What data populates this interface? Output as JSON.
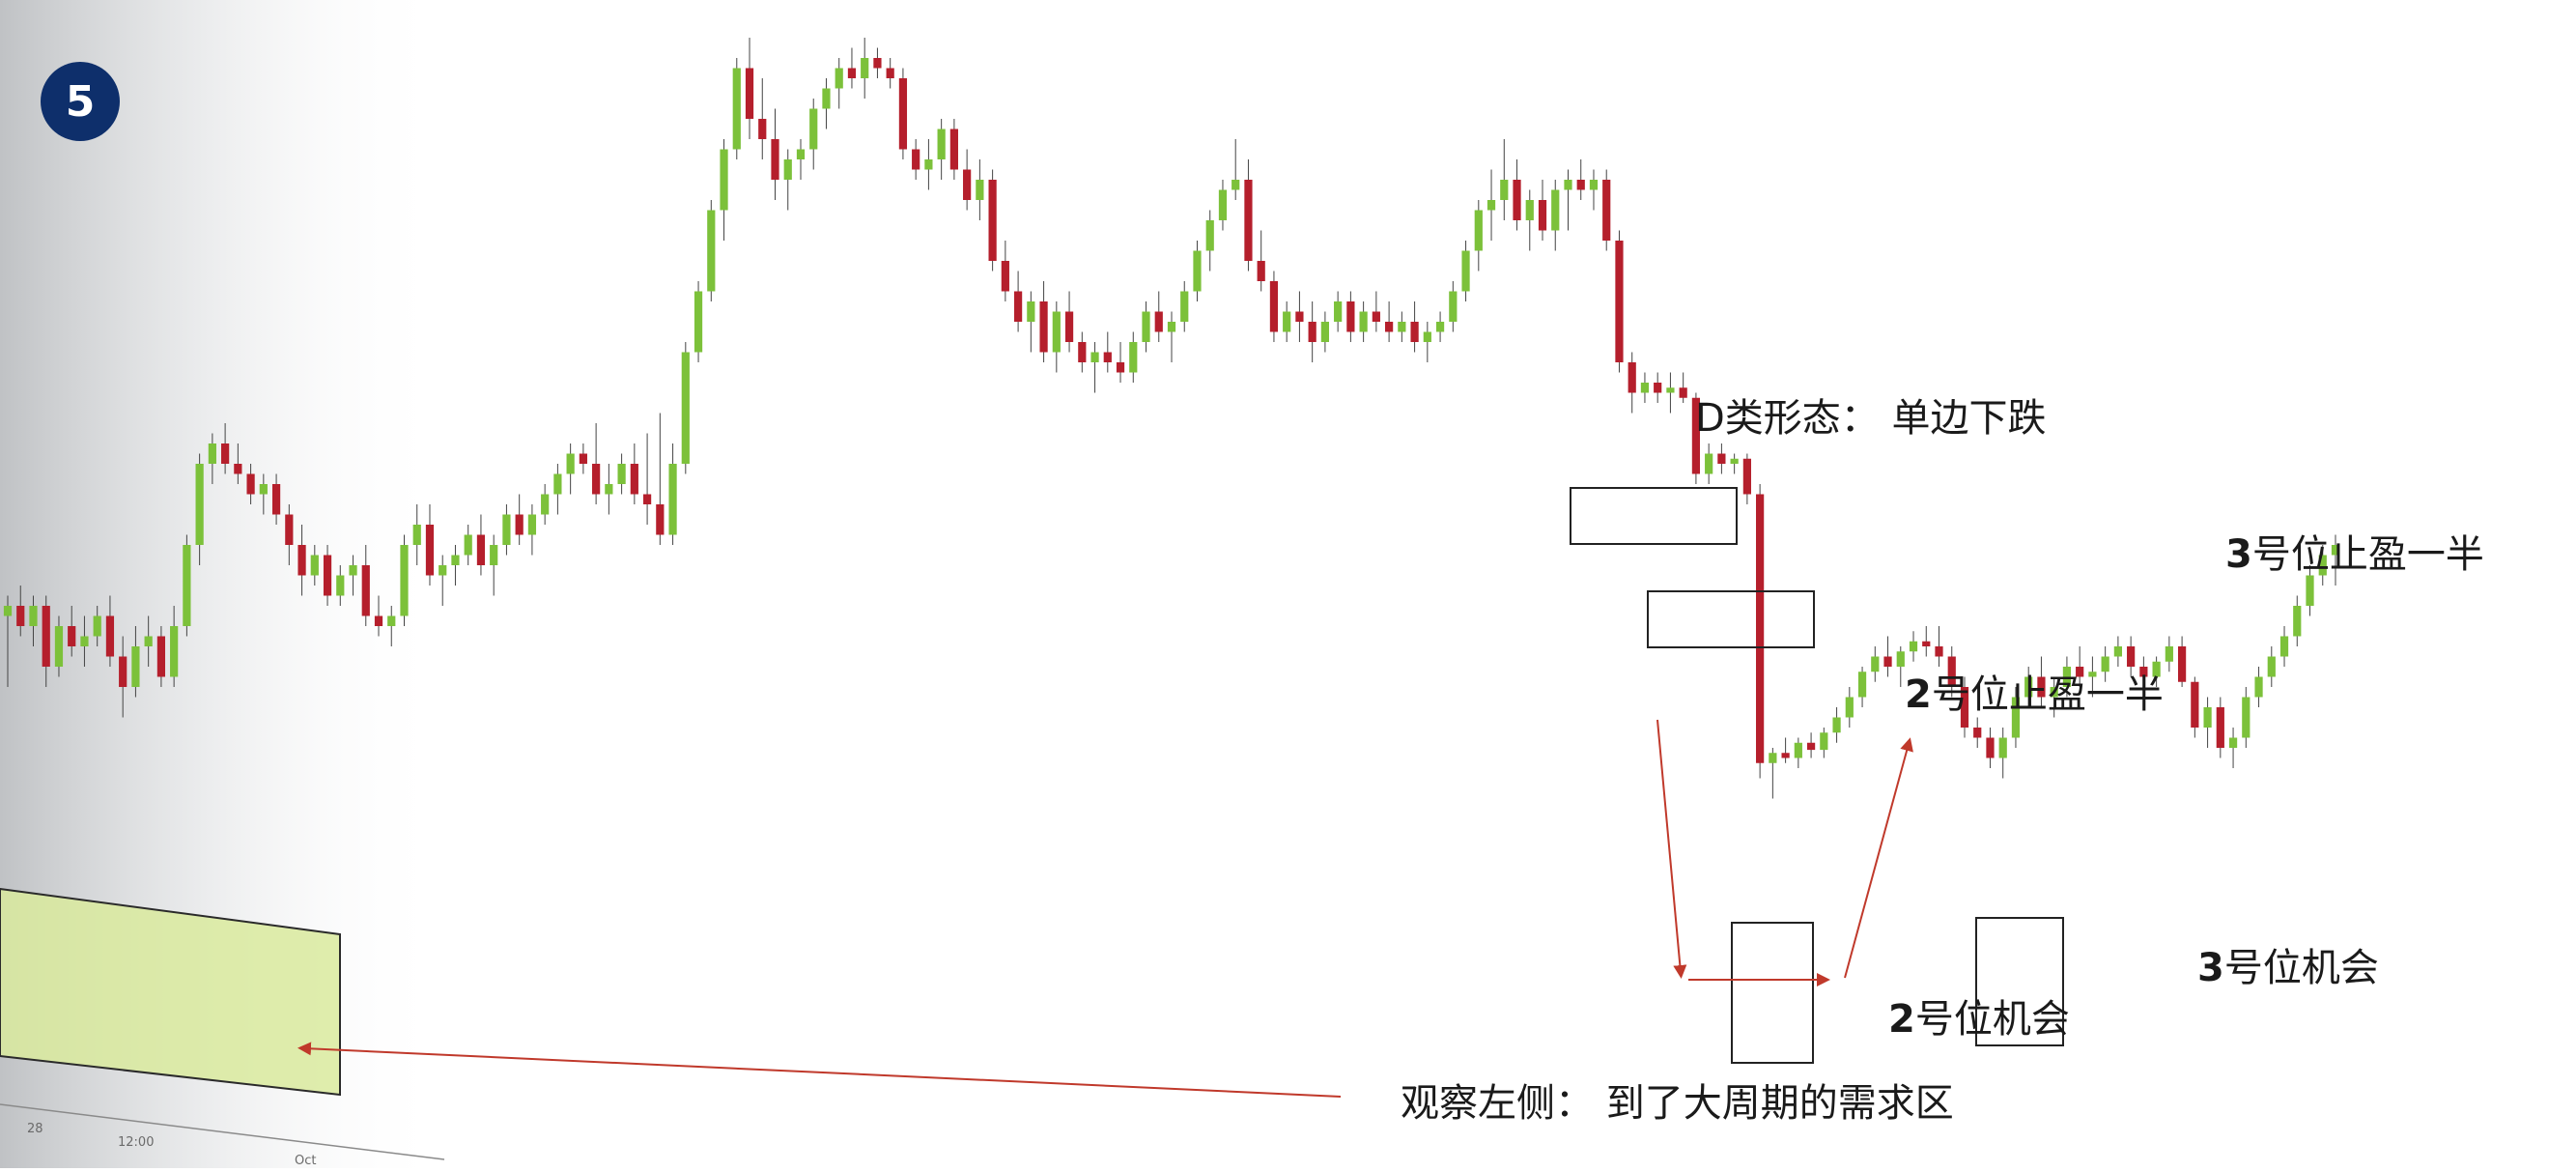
{
  "badge": "5",
  "annotations": {
    "pattern_label": "D类形态：  单边下跌",
    "observe_left": "观察左侧：  到了大周期的需求区",
    "tp2_num": "2",
    "tp2_text": "号位止盈一半",
    "opp2_num": "2",
    "opp2_text": "号位机会",
    "tp3_num": "3",
    "tp3_text": "号位止盈一半",
    "opp3_num": "3",
    "opp3_text": "号位机会"
  },
  "axis_fragments": {
    "t1": "28",
    "t2": "12:00",
    "t3": "Oct"
  },
  "colors": {
    "up": "#7cc13a",
    "down": "#b51f2c",
    "zone_fill": "#d9ea9e",
    "zone_stroke": "#2a2a2a",
    "arrow": "#c0392b",
    "badge": "#0e2f6b"
  },
  "chart_data": {
    "type": "candlestick",
    "title": "",
    "xlabel": "",
    "ylabel": "",
    "ylim": [
      0,
      1000
    ],
    "candles": [
      [
        450,
        470,
        380,
        460
      ],
      [
        460,
        480,
        430,
        440
      ],
      [
        440,
        470,
        420,
        460
      ],
      [
        460,
        470,
        380,
        400
      ],
      [
        400,
        450,
        390,
        440
      ],
      [
        440,
        460,
        410,
        420
      ],
      [
        420,
        450,
        400,
        430
      ],
      [
        430,
        460,
        420,
        450
      ],
      [
        450,
        470,
        400,
        410
      ],
      [
        410,
        430,
        350,
        380
      ],
      [
        380,
        440,
        370,
        420
      ],
      [
        420,
        450,
        400,
        430
      ],
      [
        430,
        440,
        380,
        390
      ],
      [
        390,
        460,
        380,
        440
      ],
      [
        440,
        530,
        430,
        520
      ],
      [
        520,
        610,
        500,
        600
      ],
      [
        600,
        630,
        580,
        620
      ],
      [
        620,
        640,
        590,
        600
      ],
      [
        600,
        620,
        580,
        590
      ],
      [
        590,
        600,
        560,
        570
      ],
      [
        570,
        590,
        550,
        580
      ],
      [
        580,
        590,
        540,
        550
      ],
      [
        550,
        560,
        500,
        520
      ],
      [
        520,
        540,
        470,
        490
      ],
      [
        490,
        520,
        480,
        510
      ],
      [
        510,
        520,
        460,
        470
      ],
      [
        470,
        500,
        460,
        490
      ],
      [
        490,
        510,
        470,
        500
      ],
      [
        500,
        520,
        440,
        450
      ],
      [
        450,
        470,
        430,
        440
      ],
      [
        440,
        460,
        420,
        450
      ],
      [
        450,
        530,
        440,
        520
      ],
      [
        520,
        560,
        500,
        540
      ],
      [
        540,
        560,
        480,
        490
      ],
      [
        490,
        510,
        460,
        500
      ],
      [
        500,
        520,
        480,
        510
      ],
      [
        510,
        540,
        500,
        530
      ],
      [
        530,
        550,
        490,
        500
      ],
      [
        500,
        530,
        470,
        520
      ],
      [
        520,
        560,
        510,
        550
      ],
      [
        550,
        570,
        520,
        530
      ],
      [
        530,
        560,
        510,
        550
      ],
      [
        550,
        580,
        540,
        570
      ],
      [
        570,
        600,
        550,
        590
      ],
      [
        590,
        620,
        570,
        610
      ],
      [
        610,
        620,
        590,
        600
      ],
      [
        600,
        640,
        560,
        570
      ],
      [
        570,
        600,
        550,
        580
      ],
      [
        580,
        610,
        570,
        600
      ],
      [
        600,
        620,
        560,
        570
      ],
      [
        570,
        630,
        540,
        560
      ],
      [
        560,
        650,
        520,
        530
      ],
      [
        530,
        620,
        520,
        600
      ],
      [
        600,
        720,
        590,
        710
      ],
      [
        710,
        780,
        700,
        770
      ],
      [
        770,
        860,
        760,
        850
      ],
      [
        850,
        920,
        820,
        910
      ],
      [
        910,
        1000,
        900,
        990
      ],
      [
        990,
        1020,
        920,
        940
      ],
      [
        940,
        980,
        900,
        920
      ],
      [
        920,
        950,
        860,
        880
      ],
      [
        880,
        910,
        850,
        900
      ],
      [
        900,
        920,
        880,
        910
      ],
      [
        910,
        960,
        890,
        950
      ],
      [
        950,
        980,
        930,
        970
      ],
      [
        970,
        1000,
        950,
        990
      ],
      [
        990,
        1010,
        970,
        980
      ],
      [
        980,
        1020,
        960,
        1000
      ],
      [
        1000,
        1010,
        980,
        990
      ],
      [
        990,
        1000,
        970,
        980
      ],
      [
        980,
        990,
        900,
        910
      ],
      [
        910,
        920,
        880,
        890
      ],
      [
        890,
        920,
        870,
        900
      ],
      [
        900,
        940,
        880,
        930
      ],
      [
        930,
        940,
        880,
        890
      ],
      [
        890,
        910,
        850,
        860
      ],
      [
        860,
        900,
        840,
        880
      ],
      [
        880,
        890,
        790,
        800
      ],
      [
        800,
        820,
        760,
        770
      ],
      [
        770,
        790,
        730,
        740
      ],
      [
        740,
        770,
        710,
        760
      ],
      [
        760,
        780,
        700,
        710
      ],
      [
        710,
        760,
        690,
        750
      ],
      [
        750,
        770,
        710,
        720
      ],
      [
        720,
        730,
        690,
        700
      ],
      [
        700,
        720,
        670,
        710
      ],
      [
        710,
        730,
        690,
        700
      ],
      [
        700,
        720,
        680,
        690
      ],
      [
        690,
        730,
        680,
        720
      ],
      [
        720,
        760,
        710,
        750
      ],
      [
        750,
        770,
        720,
        730
      ],
      [
        730,
        750,
        700,
        740
      ],
      [
        740,
        780,
        730,
        770
      ],
      [
        770,
        820,
        760,
        810
      ],
      [
        810,
        850,
        790,
        840
      ],
      [
        840,
        880,
        830,
        870
      ],
      [
        870,
        920,
        860,
        880
      ],
      [
        880,
        900,
        790,
        800
      ],
      [
        800,
        830,
        770,
        780
      ],
      [
        780,
        790,
        720,
        730
      ],
      [
        730,
        760,
        720,
        750
      ],
      [
        750,
        770,
        720,
        740
      ],
      [
        740,
        760,
        700,
        720
      ],
      [
        720,
        750,
        710,
        740
      ],
      [
        740,
        770,
        730,
        760
      ],
      [
        760,
        770,
        720,
        730
      ],
      [
        730,
        760,
        720,
        750
      ],
      [
        750,
        770,
        730,
        740
      ],
      [
        740,
        760,
        720,
        730
      ],
      [
        730,
        750,
        720,
        740
      ],
      [
        740,
        760,
        710,
        720
      ],
      [
        720,
        740,
        700,
        730
      ],
      [
        730,
        750,
        720,
        740
      ],
      [
        740,
        780,
        730,
        770
      ],
      [
        770,
        820,
        760,
        810
      ],
      [
        810,
        860,
        790,
        850
      ],
      [
        850,
        890,
        820,
        860
      ],
      [
        860,
        920,
        840,
        880
      ],
      [
        880,
        900,
        830,
        840
      ],
      [
        840,
        870,
        810,
        860
      ],
      [
        860,
        880,
        820,
        830
      ],
      [
        830,
        880,
        810,
        870
      ],
      [
        870,
        890,
        830,
        880
      ],
      [
        880,
        900,
        860,
        870
      ],
      [
        870,
        890,
        850,
        880
      ],
      [
        880,
        890,
        810,
        820
      ],
      [
        820,
        830,
        690,
        700
      ],
      [
        700,
        710,
        650,
        670
      ],
      [
        670,
        690,
        660,
        680
      ],
      [
        680,
        690,
        660,
        670
      ],
      [
        670,
        690,
        650,
        675
      ],
      [
        675,
        690,
        660,
        665
      ],
      [
        665,
        670,
        580,
        590
      ],
      [
        590,
        620,
        580,
        610
      ],
      [
        610,
        620,
        590,
        600
      ],
      [
        600,
        610,
        590,
        605
      ],
      [
        605,
        610,
        560,
        570
      ],
      [
        570,
        580,
        290,
        305
      ],
      [
        305,
        320,
        270,
        315
      ],
      [
        315,
        330,
        305,
        310
      ],
      [
        310,
        330,
        300,
        325
      ],
      [
        325,
        335,
        310,
        318
      ],
      [
        318,
        340,
        310,
        335
      ],
      [
        335,
        360,
        325,
        350
      ],
      [
        350,
        380,
        340,
        370
      ],
      [
        370,
        400,
        360,
        395
      ],
      [
        395,
        420,
        385,
        410
      ],
      [
        410,
        430,
        390,
        400
      ],
      [
        400,
        420,
        380,
        415
      ],
      [
        415,
        435,
        405,
        425
      ],
      [
        425,
        440,
        410,
        420
      ],
      [
        420,
        440,
        400,
        410
      ],
      [
        410,
        420,
        370,
        380
      ],
      [
        380,
        390,
        330,
        340
      ],
      [
        340,
        350,
        320,
        330
      ],
      [
        330,
        340,
        300,
        310
      ],
      [
        310,
        340,
        290,
        330
      ],
      [
        330,
        380,
        320,
        370
      ],
      [
        370,
        400,
        360,
        390
      ],
      [
        390,
        410,
        360,
        370
      ],
      [
        370,
        390,
        350,
        380
      ],
      [
        380,
        410,
        370,
        400
      ],
      [
        400,
        420,
        380,
        390
      ],
      [
        390,
        410,
        370,
        395
      ],
      [
        395,
        420,
        385,
        410
      ],
      [
        410,
        430,
        400,
        420
      ],
      [
        420,
        430,
        390,
        400
      ],
      [
        400,
        410,
        380,
        390
      ],
      [
        390,
        410,
        380,
        405
      ],
      [
        405,
        430,
        395,
        420
      ],
      [
        420,
        430,
        380,
        385
      ],
      [
        385,
        390,
        330,
        340
      ],
      [
        340,
        370,
        320,
        360
      ],
      [
        360,
        370,
        310,
        320
      ],
      [
        320,
        340,
        300,
        330
      ],
      [
        330,
        380,
        320,
        370
      ],
      [
        370,
        400,
        360,
        390
      ],
      [
        390,
        420,
        380,
        410
      ],
      [
        410,
        440,
        400,
        430
      ],
      [
        430,
        470,
        420,
        460
      ],
      [
        460,
        500,
        450,
        490
      ],
      [
        490,
        520,
        480,
        510
      ],
      [
        510,
        530,
        480,
        520
      ]
    ]
  }
}
